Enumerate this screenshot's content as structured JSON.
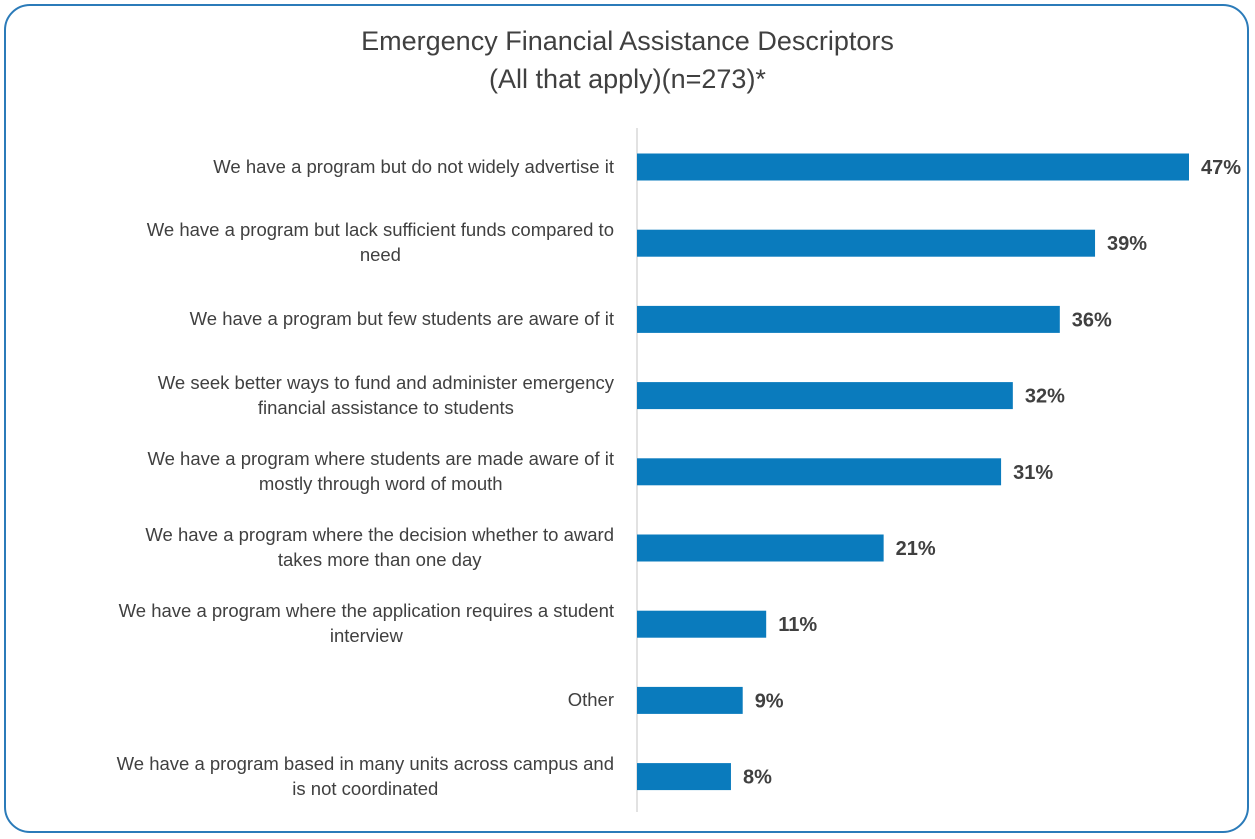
{
  "chart_data": {
    "type": "bar",
    "orientation": "horizontal",
    "title": "Emergency Financial Assistance Descriptors",
    "subtitle": "(All that apply)(n=273)*",
    "categories": [
      "We have a program but do not widely advertise it",
      "We have a program but lack sufficient funds compared to need",
      "We have a program but few students are aware of it",
      "We seek better ways to fund and administer emergency financial assistance to students",
      "We have a program where students are made aware of it mostly through word of mouth",
      "We have a program where the decision whether to award takes more than one day",
      "We have a program where the application requires a student interview",
      "Other",
      "We have a program based in many units across campus and is not coordinated"
    ],
    "category_lines": [
      [
        "We have a program but do not widely advertise it"
      ],
      [
        "We have a program but lack sufficient funds compared to",
        "need"
      ],
      [
        "We have a program but few students are aware of it"
      ],
      [
        "We seek better ways to fund and administer emergency",
        "financial assistance to students"
      ],
      [
        "We have a program where students are made aware of it",
        "mostly through word of mouth"
      ],
      [
        "We have a program where the decision whether to award",
        "takes more than one day"
      ],
      [
        "We have a program where the application requires a student",
        "interview"
      ],
      [
        "Other"
      ],
      [
        "We have a program based in many units across campus and",
        "is not coordinated"
      ]
    ],
    "values": [
      47,
      39,
      36,
      32,
      31,
      21,
      11,
      9,
      8
    ],
    "data_labels": [
      "47%",
      "39%",
      "36%",
      "32%",
      "31%",
      "21%",
      "11%",
      "9%",
      "8%"
    ],
    "xlim": [
      0,
      47
    ],
    "grid": false,
    "legend": "none",
    "colors": {
      "bar": "#0a7bbd",
      "axis": "#d9d9d9",
      "text": "#404040",
      "border": "#2b7bb9"
    }
  }
}
